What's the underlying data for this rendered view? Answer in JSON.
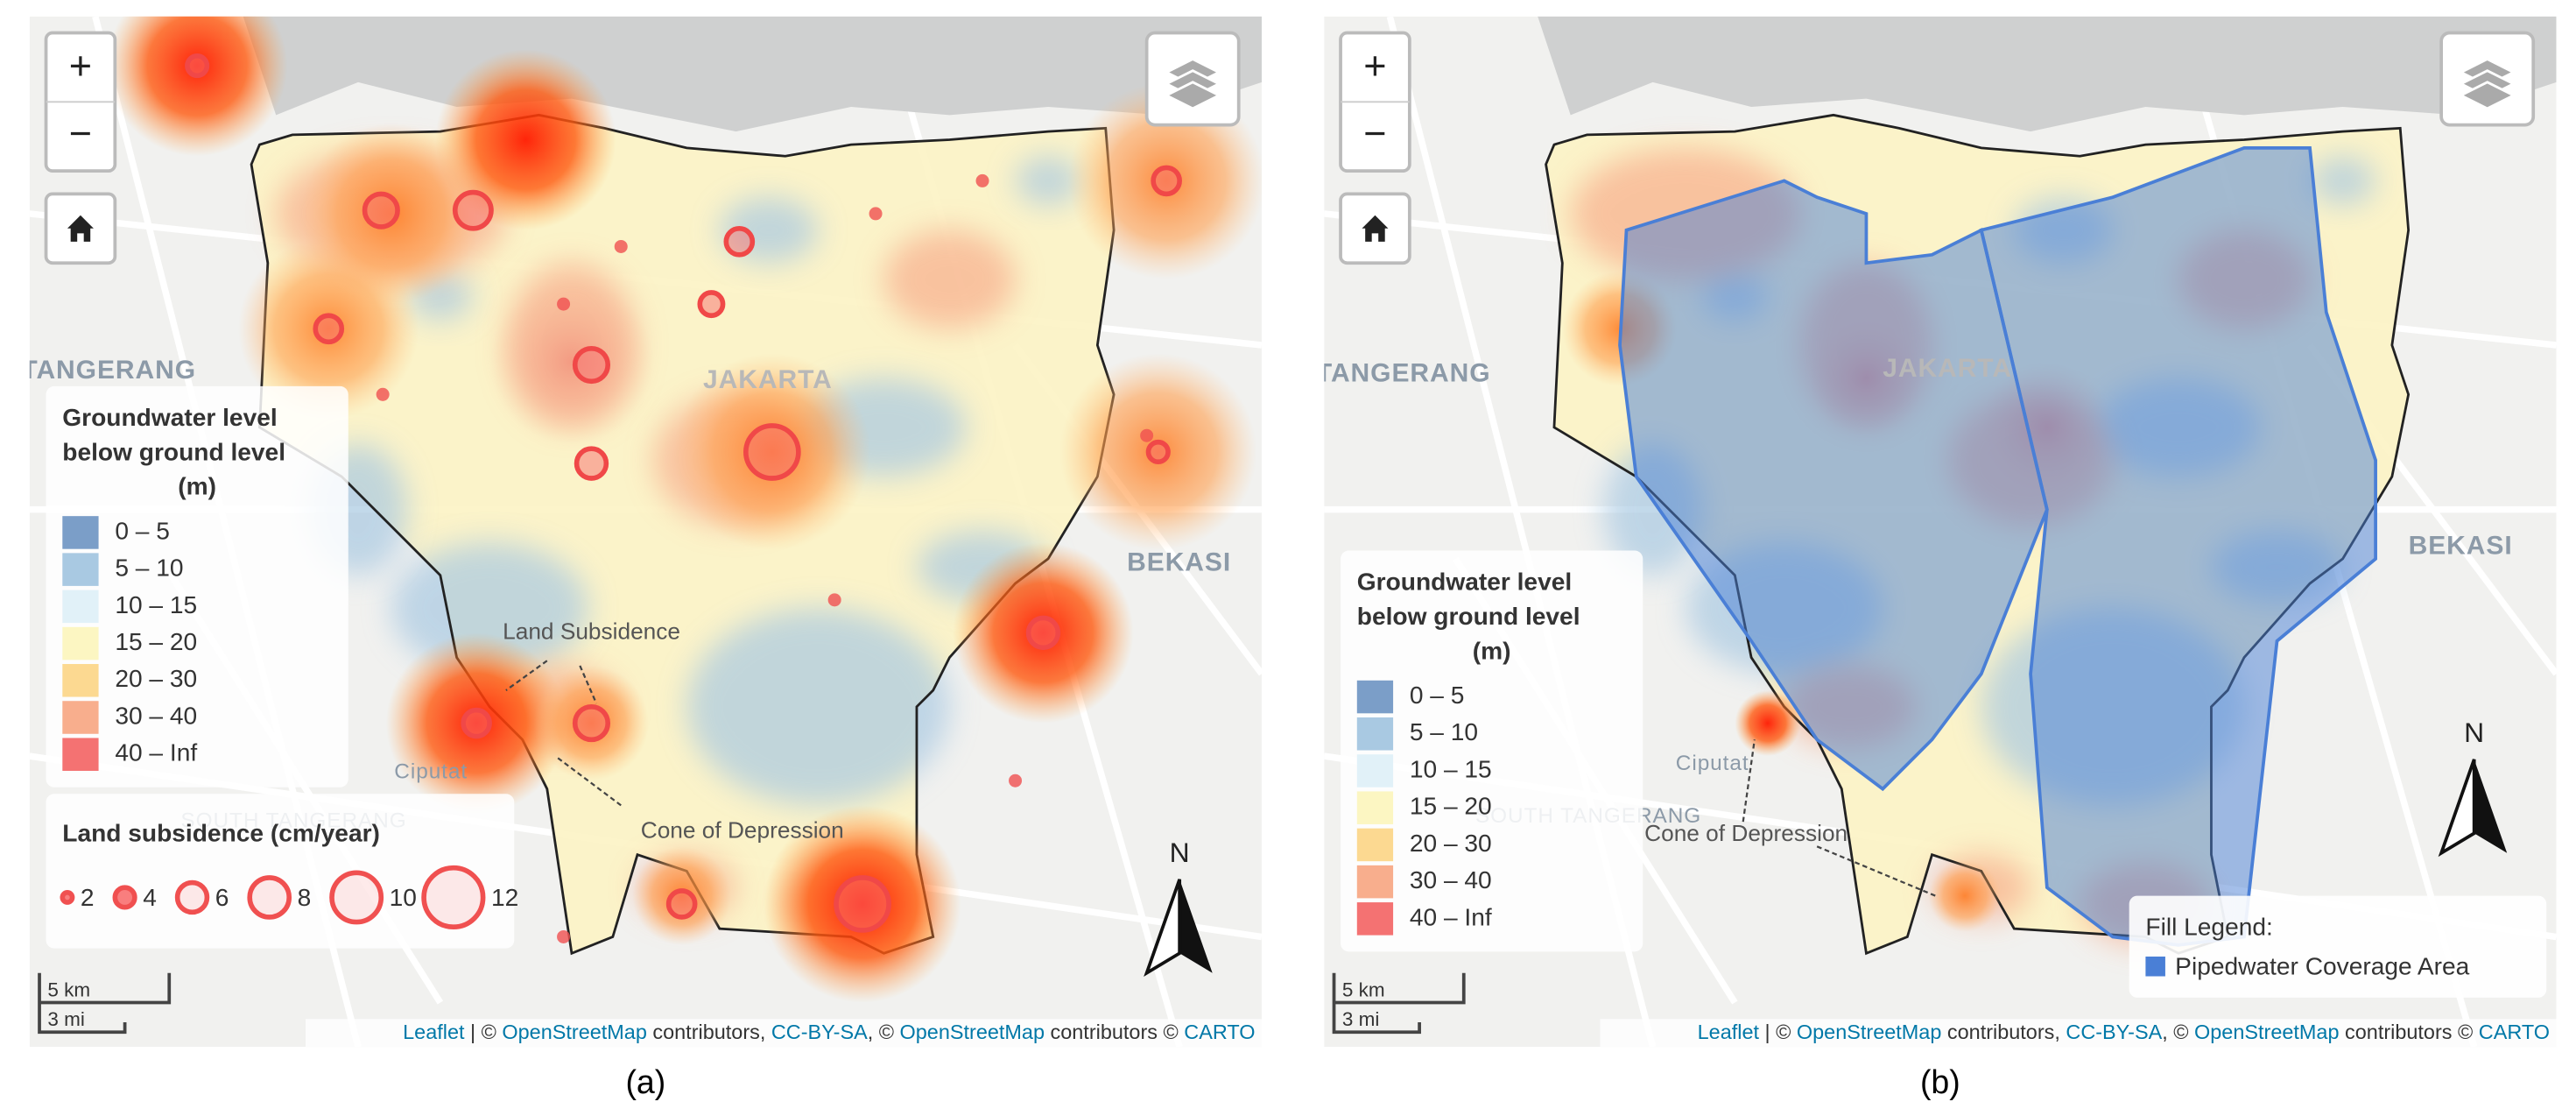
{
  "panels": [
    {
      "caption": "(a)",
      "map_labels": [
        "TANGERANG",
        "JAKARTA",
        "BEKASI",
        "Ciputat",
        "SOUTH TANGERANG"
      ],
      "annotations": [
        "Land Subsidence",
        "Cone of Depression"
      ],
      "legend": {
        "title": [
          "Groundwater level",
          "below ground level",
          "(m)"
        ],
        "items": [
          {
            "label": "0 – 5",
            "color": "#7b9ec8"
          },
          {
            "label": "5 – 10",
            "color": "#a9c9e2"
          },
          {
            "label": "10 – 15",
            "color": "#e1f1f8"
          },
          {
            "label": "15 – 20",
            "color": "#fcf6c2"
          },
          {
            "label": "20 – 30",
            "color": "#fcd991"
          },
          {
            "label": "30 – 40",
            "color": "#f8ae8d"
          },
          {
            "label": "40 – Inf",
            "color": "#f47272"
          }
        ]
      },
      "subsidence_legend": {
        "title": "Land subsidence (cm/year)",
        "sizes": [
          2,
          4,
          6,
          8,
          10,
          12
        ]
      },
      "zoom": [
        "+",
        "−"
      ],
      "scale": [
        "5 km",
        "3 mi"
      ],
      "north": "N",
      "attribution": [
        "Leaflet",
        " | © ",
        "OpenStreetMap",
        " contributors, ",
        "CC-BY-SA",
        ", © ",
        "OpenStreetMap",
        " contributors © ",
        "CARTO"
      ]
    },
    {
      "caption": "(b)",
      "map_labels": [
        "TANGERANG",
        "JAKARTA",
        "BEKASI",
        "Ciputat",
        "SOUTH TANGERANG"
      ],
      "annotations": [
        "Cone of Depression"
      ],
      "legend": {
        "title": [
          "Groundwater level",
          "below ground level",
          "(m)"
        ],
        "items": [
          {
            "label": "0 – 5",
            "color": "#7b9ec8"
          },
          {
            "label": "5 – 10",
            "color": "#a9c9e2"
          },
          {
            "label": "10 – 15",
            "color": "#e1f1f8"
          },
          {
            "label": "15 – 20",
            "color": "#fcf6c2"
          },
          {
            "label": "20 – 30",
            "color": "#fcd991"
          },
          {
            "label": "30 – 40",
            "color": "#f8ae8d"
          },
          {
            "label": "40 – Inf",
            "color": "#f47272"
          }
        ]
      },
      "fill_legend": {
        "title": "Fill Legend:",
        "label": "Pipedwater Coverage Area",
        "color": "#4a7fd6"
      },
      "zoom": [
        "+",
        "−"
      ],
      "scale": [
        "5 km",
        "3 mi"
      ],
      "north": "N",
      "attribution": [
        "Leaflet",
        " | © ",
        "OpenStreetMap",
        " contributors, ",
        "CC-BY-SA",
        ", © ",
        "OpenStreetMap",
        " contributors © ",
        "CARTO"
      ]
    }
  ]
}
